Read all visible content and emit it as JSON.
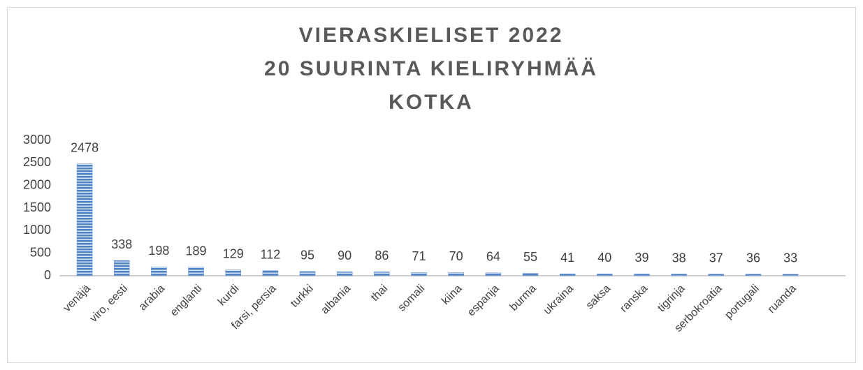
{
  "chart_data": {
    "type": "bar",
    "title": [
      "VIERASKIELISET 2022",
      "20 SUURINTA KIELIRYHMÄÄ",
      "KOTKA"
    ],
    "categories": [
      "venäjä",
      "viro, eesti",
      "arabia",
      "englanti",
      "kurdi",
      "farsi, persia",
      "turkki",
      "albania",
      "thai",
      "somali",
      "kiina",
      "espanja",
      "burma",
      "ukraina",
      "saksa",
      "ranska",
      "tigrinja",
      "serbokroatia",
      "portugali",
      "ruanda"
    ],
    "values": [
      2478,
      338,
      198,
      189,
      129,
      112,
      95,
      90,
      86,
      71,
      70,
      64,
      55,
      41,
      40,
      39,
      38,
      37,
      36,
      33
    ],
    "color": "#5b8fd0",
    "ylim": [
      0,
      3000
    ],
    "yticks": [
      0,
      500,
      1000,
      1500,
      2000,
      2500,
      3000
    ],
    "grid": false
  }
}
